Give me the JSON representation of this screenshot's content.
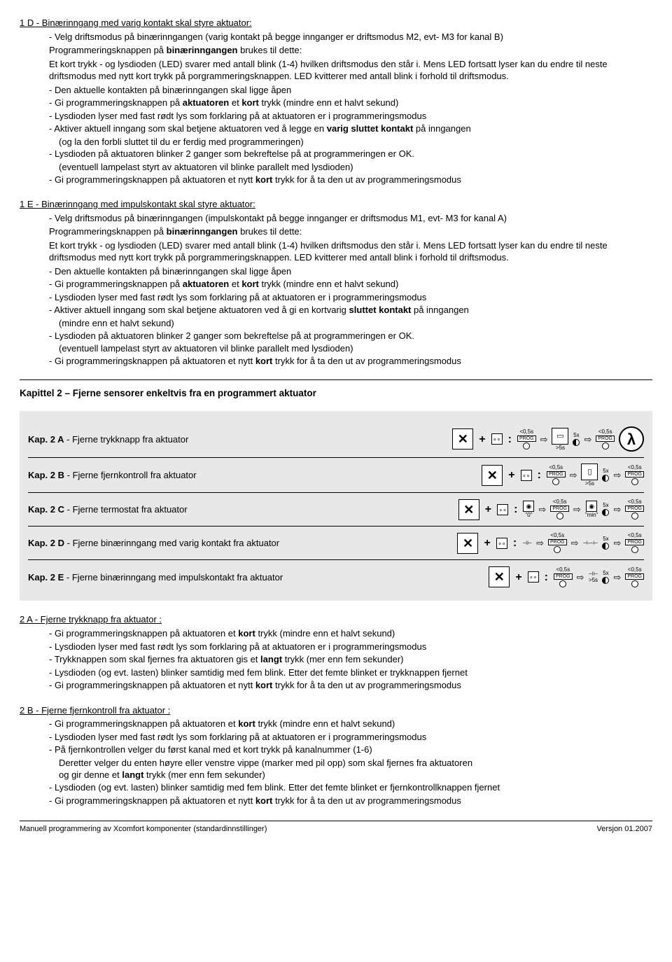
{
  "s1d": {
    "head": "1 D - Binærinngang med varig kontakt skal styre aktuator:",
    "p1": "- Velg driftsmodus på binærinngangen (varig kontakt på begge innganger er driftsmodus M2, evt- M3 for kanal B)",
    "p2a": "Programmeringsknappen på ",
    "p2b": "binærinngangen",
    "p2c": " brukes til dette:",
    "p3": "Et kort trykk - og lysdioden (LED) svarer med antall blink (1-4) hvilken driftsmodus den står i. Mens LED fortsatt lyser kan du endre til neste driftsmodus med nytt kort trykk på porgrammeringsknappen. LED kvitterer med antall blink i forhold til driftsmodus.",
    "i1": "- Den aktuelle kontakten på binærinngangen skal ligge åpen",
    "i2a": "- Gi programmeringsknappen på ",
    "i2b": "aktuatoren",
    "i2c": " et ",
    "i2d": "kort",
    "i2e": " trykk (mindre enn et halvt sekund)",
    "i3": "- Lysdioden lyser med fast rødt lys som forklaring på at aktuatoren er i programmeringsmodus",
    "i4a": "- Aktiver aktuell inngang som skal betjene aktuatoren ved å legge en ",
    "i4b": "varig sluttet kontakt",
    "i4c": " på inngangen",
    "i4sub": "(og la den forbli sluttet til du er ferdig med programmeringen)",
    "i5": "- Lysdioden på aktuatoren blinker 2 ganger som bekreftelse på at programmeringen er OK.",
    "i5sub": "(eventuell lampelast styrt av aktuatoren vil blinke parallelt med lysdioden)",
    "i6a": "- Gi programmeringsknappen på aktuatoren et nytt ",
    "i6b": "kort",
    "i6c": " trykk for å ta den ut av programmeringsmodus"
  },
  "s1e": {
    "head": "1 E - Binærinngang med impulskontakt skal styre aktuator:",
    "p1": "- Velg driftsmodus på binærinngangen (impulskontakt på begge innganger er driftsmodus M1, evt- M3 for kanal A)",
    "p2a": "Programmeringsknappen på ",
    "p2b": "binærinngangen",
    "p2c": " brukes til dette:",
    "p3": "Et kort trykk - og lysdioden (LED) svarer med antall blink (1-4) hvilken driftsmodus den står i. Mens LED fortsatt lyser kan du endre til neste driftsmodus med nytt kort trykk på porgrammeringsknappen. LED kvitterer med antall blink i forhold til driftsmodus.",
    "i1": "- Den aktuelle kontakten på binærinngangen skal ligge åpen",
    "i2a": "- Gi programmeringsknappen på ",
    "i2b": "aktuatoren",
    "i2c": " et ",
    "i2d": "kort",
    "i2e": " trykk (mindre enn et halvt sekund)",
    "i3": "- Lysdioden lyser med fast rødt lys som forklaring på at aktuatoren er i programmeringsmodus",
    "i4a": "- Aktiver aktuell inngang som skal betjene aktuatoren ved å gi en kortvarig ",
    "i4b": "sluttet kontakt",
    "i4c": " på inngangen",
    "i4sub": "(mindre enn et halvt sekund)",
    "i5": "- Lysdioden på aktuatoren blinker 2 ganger som bekreftelse på at programmeringen er OK.",
    "i5sub": "(eventuell lampelast styrt av aktuatoren vil blinke parallelt med lysdioden)",
    "i6a": "- Gi programmeringsknappen på aktuatoren et nytt ",
    "i6b": "kort",
    "i6c": " trykk for å ta den ut av programmeringsmodus"
  },
  "kap2": {
    "title": "Kapittel 2 – Fjerne sensorer enkeltvis fra en programmert aktuator",
    "rows": [
      {
        "b": "Kap. 2 A",
        "t": " - Fjerne trykknapp fra aktuator"
      },
      {
        "b": "Kap. 2 B",
        "t": " - Fjerne fjernkontroll fra aktuator"
      },
      {
        "b": "Kap. 2 C",
        "t": " - Fjerne termostat fra aktuator"
      },
      {
        "b": "Kap. 2 D",
        "t": " - Fjerne binærinngang med varig kontakt fra aktuator"
      },
      {
        "b": "Kap. 2 E",
        "t": " - Fjerne binærinngang med impulskontakt fra aktuator"
      }
    ],
    "sym": {
      "lt05": "<0,5s",
      "gt5": ">5s",
      "x5": "5x",
      "prog": "PROG",
      "zero": "\"0\"",
      "min": "\"min\""
    }
  },
  "s2a": {
    "head": "2 A - Fjerne trykknapp fra aktuator :",
    "i1a": "- Gi programmeringsknappen på aktuatoren et ",
    "i1b": "kort",
    "i1c": " trykk (mindre enn et halvt sekund)",
    "i2": "- Lysdioden lyser med fast rødt lys som forklaring på at aktuatoren er i programmeringsmodus",
    "i3a": "- Trykknappen som skal fjernes fra aktuatoren gis et ",
    "i3b": "langt",
    "i3c": " trykk (mer enn fem sekunder)",
    "i4": "- Lysdioden (og evt. lasten) blinker samtidig med fem blink. Etter det femte blinket er trykknappen fjernet",
    "i5a": "- Gi programmeringsknappen på aktuatoren et nytt ",
    "i5b": "kort",
    "i5c": " trykk for å ta den ut av programmeringsmodus"
  },
  "s2b": {
    "head": "2 B - Fjerne fjernkontroll fra aktuator :",
    "i1a": "- Gi programmeringsknappen på aktuatoren et ",
    "i1b": "kort",
    "i1c": " trykk (mindre enn et halvt sekund)",
    "i2": "- Lysdioden lyser med fast rødt lys som forklaring på at aktuatoren er i programmeringsmodus",
    "i3": "- På fjernkontrollen velger du først kanal med et kort trykk på kanalnummer (1-6)",
    "i4": "Deretter velger du enten høyre eller venstre vippe (marker med pil opp) som skal fjernes fra aktuatoren",
    "i4b": "og gir denne et ",
    "i4c": "langt",
    "i4d": " trykk (mer enn fem sekunder)",
    "i5": "- Lysdioden (og evt. lasten) blinker samtidig med fem blink. Etter det femte blinket er fjernkontrollknappen fjernet",
    "i6a": "- Gi programmeringsknappen på aktuatoren et nytt ",
    "i6b": "kort",
    "i6c": " trykk for å ta den ut av programmeringsmodus"
  },
  "footer": {
    "left": "Manuell programmering av Xcomfort komponenter (standardinnstillinger)",
    "right": "Versjon 01.2007"
  }
}
